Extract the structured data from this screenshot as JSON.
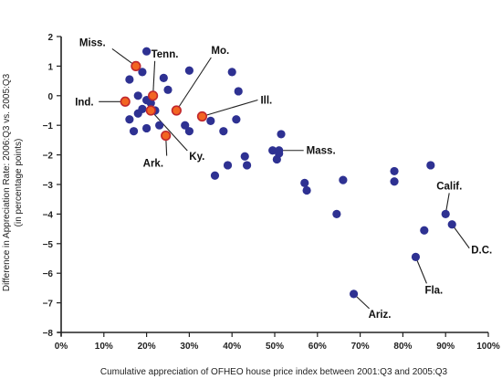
{
  "chart_data": {
    "type": "scatter",
    "xlabel": "Cumulative appreciation of OFHEO house price index between 2001:Q3 and 2005:Q3",
    "ylabel_lines": [
      "Difference in Appreciation Rate: 2006:Q3 vs. 2005:Q3",
      "(in percentage points)"
    ],
    "xlim": [
      0,
      100
    ],
    "ylim": [
      -8,
      2
    ],
    "x_ticks": [
      0,
      10,
      20,
      30,
      40,
      50,
      60,
      70,
      80,
      90,
      100
    ],
    "x_tick_labels": [
      "0%",
      "10%",
      "20%",
      "30%",
      "40%",
      "50%",
      "60%",
      "70%",
      "80%",
      "90%",
      "100%"
    ],
    "y_ticks": [
      2,
      1,
      0,
      -1,
      -2,
      -3,
      -4,
      -5,
      -6,
      -7,
      -8
    ],
    "y_tick_labels": [
      "2",
      "1",
      "0",
      "−1",
      "−2",
      "−3",
      "−4",
      "−5",
      "−6",
      "−7",
      "−8"
    ],
    "grid": false,
    "colors": {
      "point": "#2e3192",
      "highlight_fill": "#f26522",
      "highlight_edge": "#c1272d",
      "line": "#222222"
    },
    "points": [
      {
        "x": 20,
        "y": 1.5
      },
      {
        "x": 16,
        "y": 0.55
      },
      {
        "x": 19,
        "y": 0.8
      },
      {
        "x": 24,
        "y": 0.6
      },
      {
        "x": 25,
        "y": 0.2
      },
      {
        "x": 30,
        "y": 0.85
      },
      {
        "x": 18,
        "y": 0.0
      },
      {
        "x": 21,
        "y": -0.25
      },
      {
        "x": 20,
        "y": -0.15
      },
      {
        "x": 19,
        "y": -0.45
      },
      {
        "x": 18,
        "y": -0.6
      },
      {
        "x": 22,
        "y": -0.5
      },
      {
        "x": 16,
        "y": -0.8
      },
      {
        "x": 20,
        "y": -1.1
      },
      {
        "x": 23,
        "y": -1.0
      },
      {
        "x": 17,
        "y": -1.2
      },
      {
        "x": 29,
        "y": -1.0
      },
      {
        "x": 30,
        "y": -1.2
      },
      {
        "x": 35,
        "y": -0.85
      },
      {
        "x": 38,
        "y": -1.2
      },
      {
        "x": 40,
        "y": 0.8
      },
      {
        "x": 41.5,
        "y": 0.15
      },
      {
        "x": 41,
        "y": -0.8
      },
      {
        "x": 36,
        "y": -2.7
      },
      {
        "x": 39,
        "y": -2.35
      },
      {
        "x": 43,
        "y": -2.05
      },
      {
        "x": 43.5,
        "y": -2.35
      },
      {
        "x": 49.5,
        "y": -1.85
      },
      {
        "x": 50.5,
        "y": -2.15
      },
      {
        "x": 51,
        "y": -1.95
      },
      {
        "x": 51.5,
        "y": -1.3
      },
      {
        "x": 57,
        "y": -2.95
      },
      {
        "x": 57.5,
        "y": -3.2
      },
      {
        "x": 64.5,
        "y": -4.0
      },
      {
        "x": 66,
        "y": -2.85
      },
      {
        "x": 78,
        "y": -2.55
      },
      {
        "x": 78,
        "y": -2.9
      },
      {
        "x": 86.5,
        "y": -2.35
      },
      {
        "x": 85,
        "y": -4.55
      }
    ],
    "labeled_points": [
      {
        "label": "Miss.",
        "x": 17.5,
        "y": 1.0,
        "highlight": true
      },
      {
        "label": "Tenn.",
        "x": 21.5,
        "y": 0.0,
        "highlight": true
      },
      {
        "label": "Mo.",
        "x": 27,
        "y": -0.5,
        "highlight": true
      },
      {
        "label": "Ind.",
        "x": 15,
        "y": -0.2,
        "highlight": true
      },
      {
        "label": "Ill.",
        "x": 33,
        "y": -0.7,
        "highlight": true
      },
      {
        "label": "Ky.",
        "x": 21,
        "y": -0.5,
        "highlight": true
      },
      {
        "label": "Ark.",
        "x": 24.5,
        "y": -1.35,
        "highlight": true
      },
      {
        "label": "Mass.",
        "x": 51,
        "y": -1.85,
        "highlight": false
      },
      {
        "label": "Calif.",
        "x": 90,
        "y": -4.0,
        "highlight": false
      },
      {
        "label": "D.C.",
        "x": 91.5,
        "y": -4.35,
        "highlight": false
      },
      {
        "label": "Fla.",
        "x": 83,
        "y": -5.45,
        "highlight": false
      },
      {
        "label": "Ariz.",
        "x": 68.5,
        "y": -6.7,
        "highlight": false
      }
    ]
  }
}
